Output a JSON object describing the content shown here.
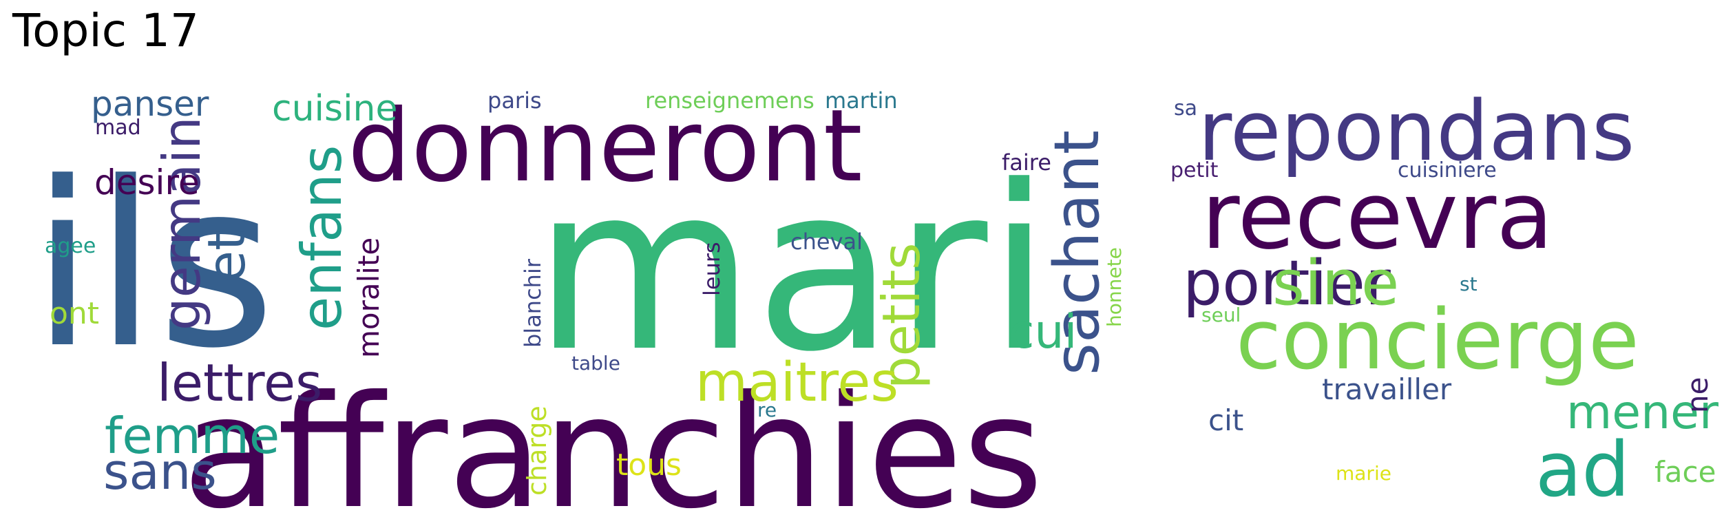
{
  "title": "Topic 17",
  "words": [
    {
      "text": "ils",
      "color": "#355f8d"
    },
    {
      "text": "mari",
      "color": "#35b779"
    },
    {
      "text": "affranchies",
      "color": "#440154"
    },
    {
      "text": "donneront",
      "color": "#440154"
    },
    {
      "text": "repondans",
      "color": "#443983"
    },
    {
      "text": "recevra",
      "color": "#440154"
    },
    {
      "text": "concierge",
      "color": "#7ad151"
    },
    {
      "text": "portier",
      "color": "#3b1c68"
    },
    {
      "text": "sachant",
      "color": "#3b528b"
    },
    {
      "text": "sine",
      "color": "#7ad151"
    },
    {
      "text": "enfans",
      "color": "#1f9e89"
    },
    {
      "text": "germain",
      "color": "#443983"
    },
    {
      "text": "et",
      "color": "#355f8d"
    },
    {
      "text": "petits",
      "color": "#a0da39"
    },
    {
      "text": "maitres",
      "color": "#bddf26"
    },
    {
      "text": "lettres",
      "color": "#3b1c68"
    },
    {
      "text": "femme",
      "color": "#1f9e89"
    },
    {
      "text": "sans",
      "color": "#3b528b"
    },
    {
      "text": "ad",
      "color": "#21a685"
    },
    {
      "text": "mener",
      "color": "#35b779"
    },
    {
      "text": "cui",
      "color": "#35b779"
    },
    {
      "text": "cuisine",
      "color": "#2db27d"
    },
    {
      "text": "panser",
      "color": "#355f8d"
    },
    {
      "text": "desire",
      "color": "#440154"
    },
    {
      "text": "moralite",
      "color": "#440154"
    },
    {
      "text": "travailler",
      "color": "#3b528b"
    },
    {
      "text": "cit",
      "color": "#3b528b"
    },
    {
      "text": "ne",
      "color": "#3b1c68"
    },
    {
      "text": "ont",
      "color": "#a0da39"
    },
    {
      "text": "tous",
      "color": "#dde318"
    },
    {
      "text": "face",
      "color": "#6ece58"
    },
    {
      "text": "charge",
      "color": "#bddf26"
    },
    {
      "text": "blanchir",
      "color": "#3e4989"
    },
    {
      "text": "leurs",
      "color": "#3b1c68"
    },
    {
      "text": "cheval",
      "color": "#3b528b"
    },
    {
      "text": "faire",
      "color": "#3b1c68"
    },
    {
      "text": "paris",
      "color": "#3e4989"
    },
    {
      "text": "renseignemens",
      "color": "#6ece58"
    },
    {
      "text": "martin",
      "color": "#2a788e"
    },
    {
      "text": "sa",
      "color": "#3e4989"
    },
    {
      "text": "petit",
      "color": "#481f70"
    },
    {
      "text": "cuisiniere",
      "color": "#3e4989"
    },
    {
      "text": "mad",
      "color": "#3b1c68"
    },
    {
      "text": "agee",
      "color": "#1f9e89"
    },
    {
      "text": "honnete",
      "color": "#86d549"
    },
    {
      "text": "st",
      "color": "#2a788e"
    },
    {
      "text": "seul",
      "color": "#6ece58"
    },
    {
      "text": "table",
      "color": "#3e4989"
    },
    {
      "text": "re",
      "color": "#2a788e"
    },
    {
      "text": "marie",
      "color": "#dde318"
    }
  ]
}
